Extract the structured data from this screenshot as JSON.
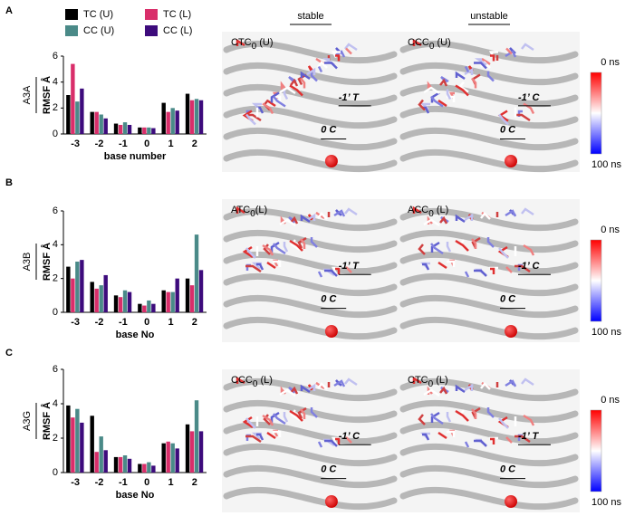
{
  "panels": [
    "A",
    "B",
    "C"
  ],
  "rows": [
    "A3A",
    "A3B",
    "A3G"
  ],
  "columns": [
    "stable",
    "unstable"
  ],
  "legend": [
    {
      "name": "TC (U)",
      "color": "#000000"
    },
    {
      "name": "TC (L)",
      "color": "#d92e6a"
    },
    {
      "name": "CC (U)",
      "color": "#4a8a88"
    },
    {
      "name": "CC (L)",
      "color": "#3d0b7c"
    }
  ],
  "images": [
    [
      {
        "label": {
          "main": "CTC",
          "sub": "0",
          "rest": " (U)"
        },
        "site1": "-1’ T",
        "site0": "0 C"
      },
      {
        "label": {
          "main": "CCC",
          "sub": "0",
          "rest": " (U)"
        },
        "site1": "-1’ C",
        "site0": "0 C"
      }
    ],
    [
      {
        "label": {
          "main": "ATC",
          "sub": "0",
          "rest": "(L)"
        },
        "site1": "-1’ T",
        "site0": "0 C"
      },
      {
        "label": {
          "main": "ACC",
          "sub": "0",
          "rest": " (L)"
        },
        "site1": "-1’ C",
        "site0": "0 C"
      }
    ],
    [
      {
        "label": {
          "main": "CCC",
          "sub": "0",
          "rest": " (L)"
        },
        "site1": "-1’ C",
        "site0": "0 C"
      },
      {
        "label": {
          "main": "CTC",
          "sub": "0",
          "rest": " (L)"
        },
        "site1": "-1’ T",
        "site0": "0 C"
      }
    ]
  ],
  "colorbar": {
    "top": "0 ns",
    "bottom": "100 ns"
  },
  "chart_data": [
    {
      "type": "bar",
      "xlabel": "base number",
      "ylabel": "RMSF Å",
      "categories": [
        "-3",
        "-2",
        "-1",
        "0",
        "1",
        "2"
      ],
      "ylim": [
        0,
        6
      ],
      "yticks": [
        0,
        2,
        4,
        6
      ],
      "series": [
        {
          "values": [
            3.0,
            1.7,
            0.8,
            0.5,
            2.4,
            3.1
          ]
        },
        {
          "values": [
            5.4,
            1.7,
            0.7,
            0.5,
            1.7,
            2.6
          ]
        },
        {
          "values": [
            2.5,
            1.5,
            0.9,
            0.5,
            2.0,
            2.7
          ]
        },
        {
          "values": [
            3.5,
            1.2,
            0.7,
            0.45,
            1.8,
            2.6
          ]
        }
      ]
    },
    {
      "type": "bar",
      "xlabel": "base No",
      "ylabel": "RMSF Å",
      "categories": [
        "-3",
        "-2",
        "-1",
        "0",
        "1",
        "2"
      ],
      "ylim": [
        0,
        6
      ],
      "yticks": [
        0,
        2,
        4,
        6
      ],
      "series": [
        {
          "values": [
            2.7,
            1.8,
            1.0,
            0.5,
            1.3,
            2.0
          ]
        },
        {
          "values": [
            2.0,
            1.4,
            0.9,
            0.4,
            1.2,
            1.6
          ]
        },
        {
          "values": [
            3.0,
            1.6,
            1.3,
            0.7,
            1.2,
            4.6
          ]
        },
        {
          "values": [
            3.1,
            2.2,
            1.2,
            0.5,
            2.0,
            2.5
          ]
        }
      ]
    },
    {
      "type": "bar",
      "xlabel": "base No",
      "ylabel": "RMSF Å",
      "categories": [
        "-3",
        "-2",
        "-1",
        "0",
        "1",
        "2"
      ],
      "ylim": [
        0,
        6
      ],
      "yticks": [
        0,
        2,
        4,
        6
      ],
      "series": [
        {
          "values": [
            3.9,
            3.3,
            0.9,
            0.5,
            1.7,
            2.8
          ]
        },
        {
          "values": [
            3.2,
            1.2,
            0.9,
            0.5,
            1.8,
            2.4
          ]
        },
        {
          "values": [
            3.7,
            2.1,
            1.0,
            0.6,
            1.7,
            4.2
          ]
        },
        {
          "values": [
            2.9,
            1.3,
            0.8,
            0.4,
            1.4,
            2.4
          ]
        }
      ]
    }
  ]
}
